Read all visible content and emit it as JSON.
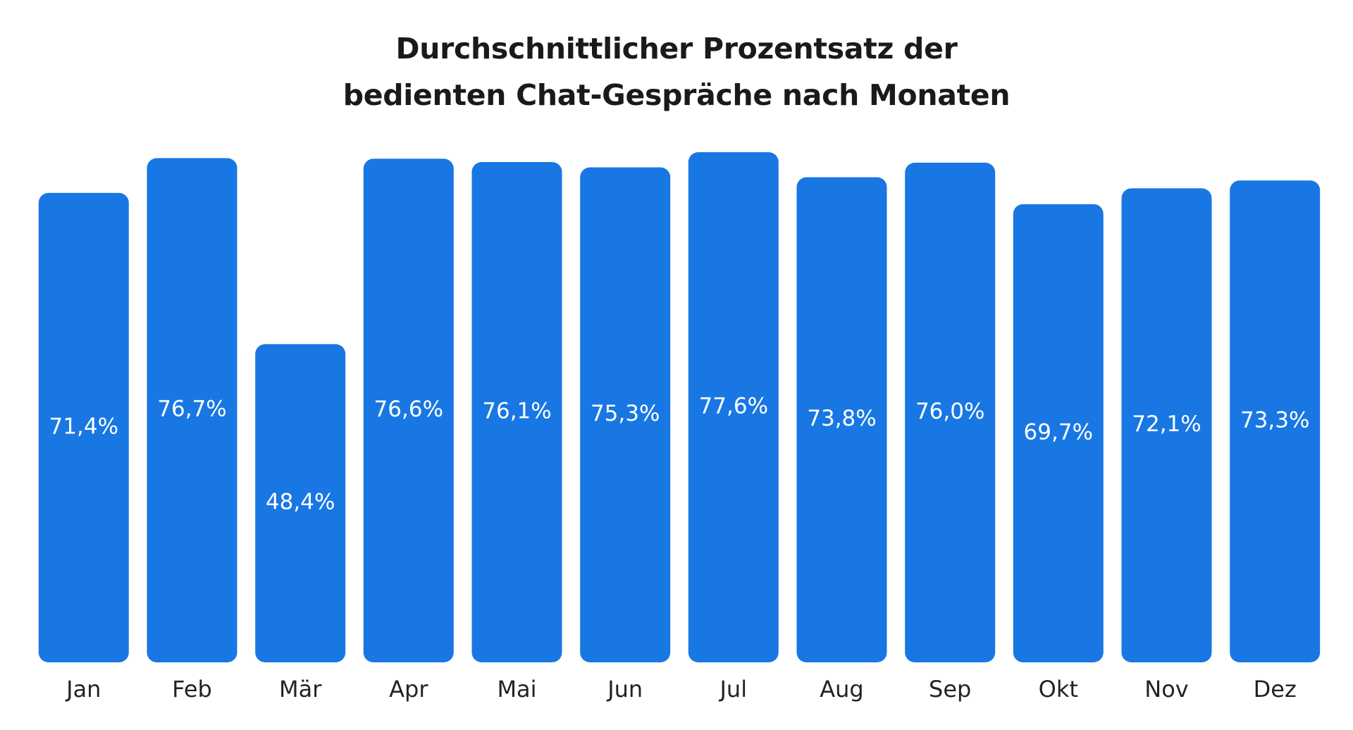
{
  "chart_data": {
    "type": "bar",
    "title": [
      "Durchschnittlicher Prozentsatz der",
      "bedienten Chat-Gespräche nach Monaten"
    ],
    "categories": [
      "Jan",
      "Feb",
      "Mär",
      "Apr",
      "Mai",
      "Jun",
      "Jul",
      "Aug",
      "Sep",
      "Okt",
      "Nov",
      "Dez"
    ],
    "values": [
      71.4,
      76.7,
      48.4,
      76.6,
      76.1,
      75.3,
      77.6,
      73.8,
      76.0,
      69.7,
      72.1,
      73.3
    ],
    "labels": [
      "71,4%",
      "76,7%",
      "48,4%",
      "76,6%",
      "76,1%",
      "75,3%",
      "77,6%",
      "73,8%",
      "76,0%",
      "69,7%",
      "72,1%",
      "73,3%"
    ],
    "xlabel": "",
    "ylabel": "",
    "ylim": [
      0,
      77.6
    ],
    "grid": false,
    "legend": "none",
    "bar_color": "#1877e3"
  }
}
